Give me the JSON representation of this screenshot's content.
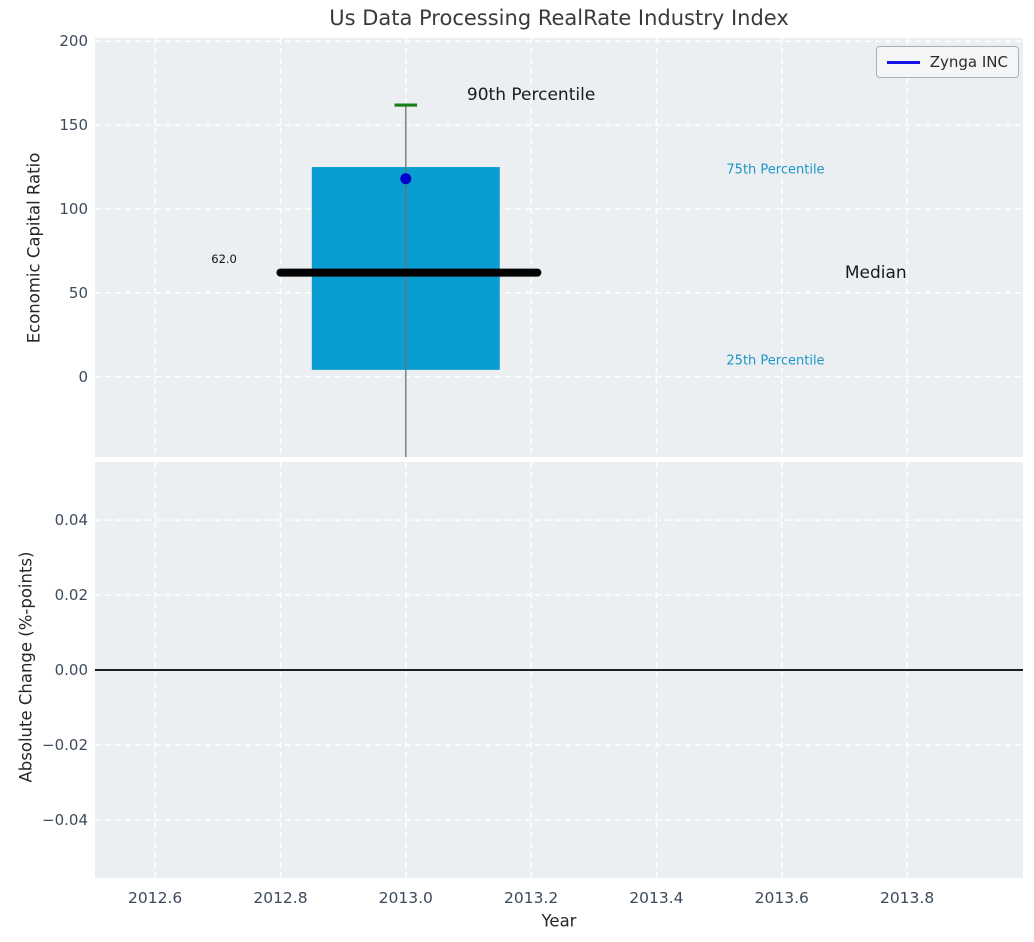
{
  "title": "Us Data Processing RealRate Industry Index",
  "legend": {
    "label": "Zynga INC",
    "line_color": "#1414e6"
  },
  "colors": {
    "plot_bg": "#eceff1",
    "grid": "#ffffff",
    "tick_text": "#3d4a5c",
    "box_fill": "#0a9ed0",
    "median_line": "#000000",
    "whisker": "#6b7075",
    "percentile_cap": "#168016",
    "company_point": "#0000cd",
    "zero_line": "#000000",
    "annotation_cyan": "#1c96c8",
    "annotation_dark": "#1a1a1a"
  },
  "chart_data": {
    "type": "boxplot",
    "title": "Us Data Processing RealRate Industry Index",
    "xlabel": "Year",
    "x_axis": {
      "xlim": [
        2012.504,
        2013.985
      ],
      "xticks": [
        2012.6,
        2012.8,
        2013.0,
        2013.2,
        2013.4,
        2013.6,
        2013.8
      ],
      "xtick_labels": [
        "2012.6",
        "2012.8",
        "2013.0",
        "2013.2",
        "2013.4",
        "2013.6",
        "2013.8"
      ]
    },
    "top_panel": {
      "ylabel": "Economic Capital Ratio",
      "ylim": [
        -48,
        202
      ],
      "yticks": [
        0,
        50,
        100,
        150,
        200
      ],
      "ytick_labels": [
        "0",
        "50",
        "100",
        "150",
        "200"
      ],
      "grid": true,
      "box": {
        "x": 2013.0,
        "box_left": 2012.85,
        "box_right": 2013.15,
        "p25": 4,
        "median": 62,
        "p75": 125,
        "p90": 162,
        "median_label": "62.0",
        "median_line_left": 2012.8,
        "median_line_right": 2013.21,
        "cap_left": 2012.982,
        "cap_right": 2013.018,
        "whisker_low_visible": -48
      },
      "company_point": {
        "name": "Zynga INC",
        "x": 2013.0,
        "y": 118
      },
      "annotations": [
        {
          "id": "p90-label",
          "text": "90th Percentile",
          "x": 2013.2,
          "y": 168,
          "color": "#1a1a1a",
          "size": 17
        },
        {
          "id": "p75-label",
          "text": "75th Percentile",
          "x": 2013.59,
          "y": 123,
          "color": "#1c96c8",
          "size": 13
        },
        {
          "id": "median-label",
          "text": "Median",
          "x": 2013.75,
          "y": 62,
          "color": "#1a1a1a",
          "size": 17
        },
        {
          "id": "p25-label",
          "text": "25th Percentile",
          "x": 2013.59,
          "y": 9,
          "color": "#1c96c8",
          "size": 13
        },
        {
          "id": "median-value",
          "text": "62.0",
          "x": 2012.71,
          "y": 70,
          "color": "#111111",
          "size": 11.5
        }
      ]
    },
    "bottom_panel": {
      "ylabel": "Absolute Change (%-points)",
      "ylim": [
        -0.0555,
        0.0555
      ],
      "yticks": [
        0.04,
        0.02,
        0.0,
        -0.02,
        -0.04
      ],
      "ytick_labels": [
        "0.04",
        "0.02",
        "0.00",
        "−0.02",
        "−0.04"
      ],
      "grid": true,
      "zero_line": 0.0
    }
  }
}
